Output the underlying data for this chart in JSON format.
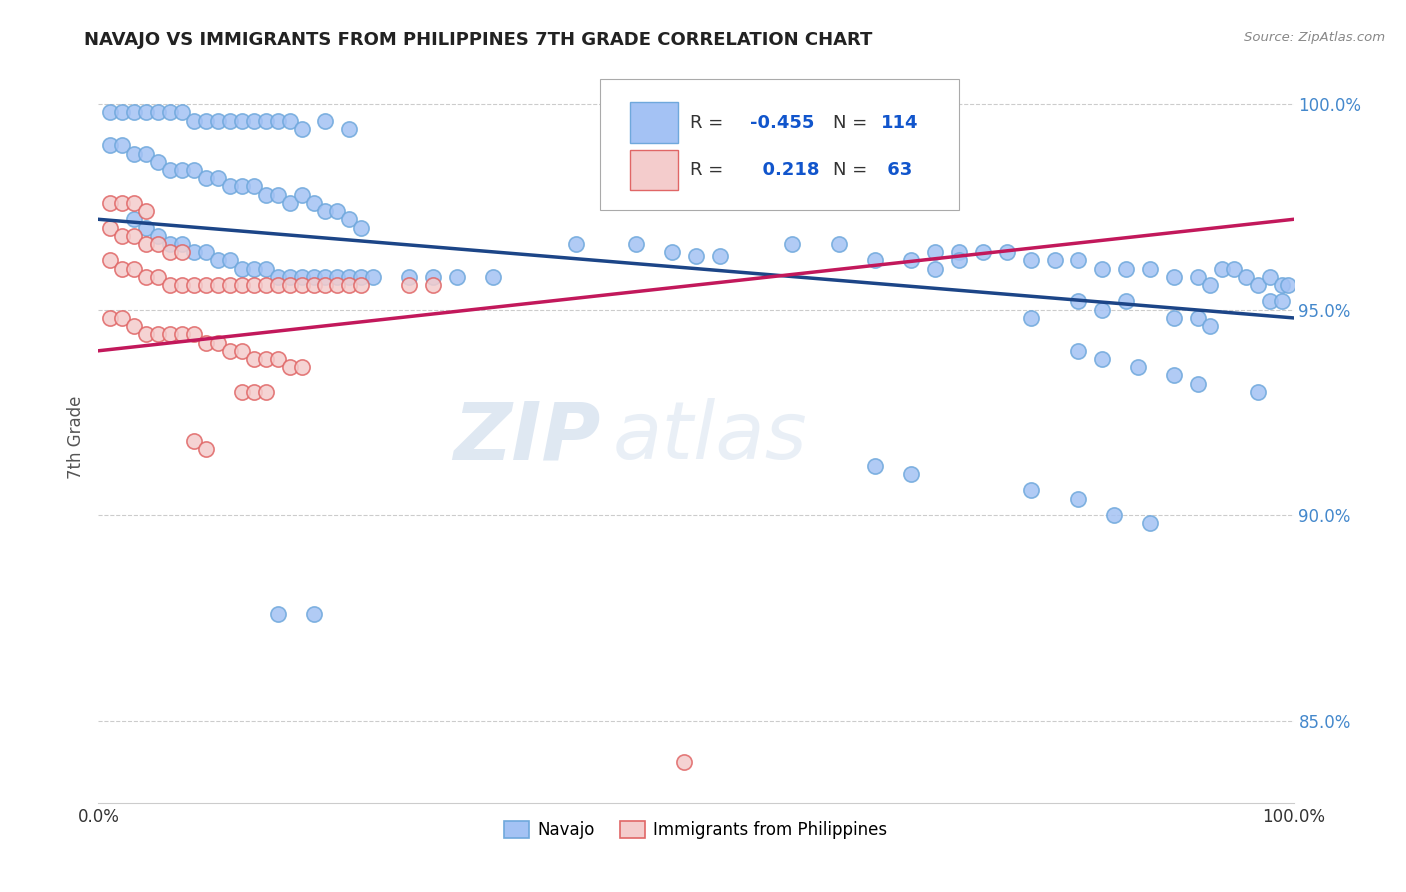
{
  "title": "NAVAJO VS IMMIGRANTS FROM PHILIPPINES 7TH GRADE CORRELATION CHART",
  "source": "Source: ZipAtlas.com",
  "ylabel": "7th Grade",
  "xlim": [
    0.0,
    1.0
  ],
  "ylim": [
    0.83,
    1.008
  ],
  "ytick_labels": [
    "85.0%",
    "90.0%",
    "95.0%",
    "100.0%"
  ],
  "ytick_values": [
    0.85,
    0.9,
    0.95,
    1.0
  ],
  "xtick_labels": [
    "0.0%",
    "",
    "",
    "",
    "",
    "",
    "",
    "",
    "",
    "",
    "100.0%"
  ],
  "xtick_values": [
    0.0,
    0.1,
    0.2,
    0.3,
    0.4,
    0.5,
    0.6,
    0.7,
    0.8,
    0.9,
    1.0
  ],
  "legend_bottom": [
    "Navajo",
    "Immigrants from Philippines"
  ],
  "blue_color": "#a4c2f4",
  "blue_edge_color": "#6fa8dc",
  "pink_color": "#f4cccc",
  "pink_edge_color": "#e06666",
  "blue_line_color": "#1c4587",
  "pink_line_color": "#c2185b",
  "watermark_text": "ZIPatlas",
  "background_color": "#ffffff",
  "grid_color": "#cccccc",
  "title_color": "#222222",
  "blue_line_x": [
    0.0,
    1.0
  ],
  "blue_line_y": [
    0.972,
    0.948
  ],
  "pink_line_x": [
    0.0,
    1.0
  ],
  "pink_line_y": [
    0.94,
    0.972
  ],
  "blue_scatter": [
    [
      0.01,
      0.998
    ],
    [
      0.02,
      0.998
    ],
    [
      0.03,
      0.998
    ],
    [
      0.04,
      0.998
    ],
    [
      0.05,
      0.998
    ],
    [
      0.06,
      0.998
    ],
    [
      0.07,
      0.998
    ],
    [
      0.08,
      0.996
    ],
    [
      0.09,
      0.996
    ],
    [
      0.1,
      0.996
    ],
    [
      0.11,
      0.996
    ],
    [
      0.12,
      0.996
    ],
    [
      0.13,
      0.996
    ],
    [
      0.14,
      0.996
    ],
    [
      0.15,
      0.996
    ],
    [
      0.16,
      0.996
    ],
    [
      0.17,
      0.994
    ],
    [
      0.19,
      0.996
    ],
    [
      0.21,
      0.994
    ],
    [
      0.01,
      0.99
    ],
    [
      0.02,
      0.99
    ],
    [
      0.03,
      0.988
    ],
    [
      0.04,
      0.988
    ],
    [
      0.05,
      0.986
    ],
    [
      0.06,
      0.984
    ],
    [
      0.07,
      0.984
    ],
    [
      0.08,
      0.984
    ],
    [
      0.09,
      0.982
    ],
    [
      0.1,
      0.982
    ],
    [
      0.11,
      0.98
    ],
    [
      0.12,
      0.98
    ],
    [
      0.13,
      0.98
    ],
    [
      0.14,
      0.978
    ],
    [
      0.15,
      0.978
    ],
    [
      0.16,
      0.976
    ],
    [
      0.17,
      0.978
    ],
    [
      0.18,
      0.976
    ],
    [
      0.19,
      0.974
    ],
    [
      0.2,
      0.974
    ],
    [
      0.21,
      0.972
    ],
    [
      0.22,
      0.97
    ],
    [
      0.03,
      0.972
    ],
    [
      0.04,
      0.97
    ],
    [
      0.05,
      0.968
    ],
    [
      0.06,
      0.966
    ],
    [
      0.07,
      0.966
    ],
    [
      0.08,
      0.964
    ],
    [
      0.09,
      0.964
    ],
    [
      0.1,
      0.962
    ],
    [
      0.11,
      0.962
    ],
    [
      0.12,
      0.96
    ],
    [
      0.13,
      0.96
    ],
    [
      0.14,
      0.96
    ],
    [
      0.15,
      0.958
    ],
    [
      0.16,
      0.958
    ],
    [
      0.17,
      0.958
    ],
    [
      0.18,
      0.958
    ],
    [
      0.19,
      0.958
    ],
    [
      0.2,
      0.958
    ],
    [
      0.21,
      0.958
    ],
    [
      0.22,
      0.958
    ],
    [
      0.23,
      0.958
    ],
    [
      0.26,
      0.958
    ],
    [
      0.28,
      0.958
    ],
    [
      0.3,
      0.958
    ],
    [
      0.33,
      0.958
    ],
    [
      0.4,
      0.966
    ],
    [
      0.45,
      0.966
    ],
    [
      0.48,
      0.964
    ],
    [
      0.5,
      0.963
    ],
    [
      0.52,
      0.963
    ],
    [
      0.58,
      0.966
    ],
    [
      0.62,
      0.966
    ],
    [
      0.65,
      0.962
    ],
    [
      0.68,
      0.962
    ],
    [
      0.7,
      0.964
    ],
    [
      0.72,
      0.964
    ],
    [
      0.74,
      0.964
    ],
    [
      0.76,
      0.964
    ],
    [
      0.78,
      0.962
    ],
    [
      0.8,
      0.962
    ],
    [
      0.82,
      0.962
    ],
    [
      0.84,
      0.96
    ],
    [
      0.86,
      0.96
    ],
    [
      0.88,
      0.96
    ],
    [
      0.9,
      0.958
    ],
    [
      0.92,
      0.958
    ],
    [
      0.93,
      0.956
    ],
    [
      0.94,
      0.96
    ],
    [
      0.95,
      0.96
    ],
    [
      0.96,
      0.958
    ],
    [
      0.97,
      0.956
    ],
    [
      0.98,
      0.958
    ],
    [
      0.99,
      0.956
    ],
    [
      0.995,
      0.956
    ],
    [
      0.98,
      0.952
    ],
    [
      0.99,
      0.952
    ],
    [
      0.82,
      0.952
    ],
    [
      0.84,
      0.95
    ],
    [
      0.86,
      0.952
    ],
    [
      0.9,
      0.948
    ],
    [
      0.92,
      0.948
    ],
    [
      0.93,
      0.946
    ],
    [
      0.78,
      0.948
    ],
    [
      0.7,
      0.96
    ],
    [
      0.72,
      0.962
    ],
    [
      0.82,
      0.94
    ],
    [
      0.84,
      0.938
    ],
    [
      0.87,
      0.936
    ],
    [
      0.9,
      0.934
    ],
    [
      0.92,
      0.932
    ],
    [
      0.97,
      0.93
    ],
    [
      0.65,
      0.912
    ],
    [
      0.68,
      0.91
    ],
    [
      0.78,
      0.906
    ],
    [
      0.82,
      0.904
    ],
    [
      0.85,
      0.9
    ],
    [
      0.88,
      0.898
    ],
    [
      0.15,
      0.876
    ],
    [
      0.18,
      0.876
    ]
  ],
  "pink_scatter": [
    [
      0.01,
      0.976
    ],
    [
      0.02,
      0.976
    ],
    [
      0.03,
      0.976
    ],
    [
      0.04,
      0.974
    ],
    [
      0.01,
      0.97
    ],
    [
      0.02,
      0.968
    ],
    [
      0.03,
      0.968
    ],
    [
      0.04,
      0.966
    ],
    [
      0.05,
      0.966
    ],
    [
      0.06,
      0.964
    ],
    [
      0.07,
      0.964
    ],
    [
      0.01,
      0.962
    ],
    [
      0.02,
      0.96
    ],
    [
      0.03,
      0.96
    ],
    [
      0.04,
      0.958
    ],
    [
      0.05,
      0.958
    ],
    [
      0.06,
      0.956
    ],
    [
      0.07,
      0.956
    ],
    [
      0.08,
      0.956
    ],
    [
      0.09,
      0.956
    ],
    [
      0.1,
      0.956
    ],
    [
      0.11,
      0.956
    ],
    [
      0.12,
      0.956
    ],
    [
      0.13,
      0.956
    ],
    [
      0.14,
      0.956
    ],
    [
      0.15,
      0.956
    ],
    [
      0.16,
      0.956
    ],
    [
      0.17,
      0.956
    ],
    [
      0.18,
      0.956
    ],
    [
      0.19,
      0.956
    ],
    [
      0.2,
      0.956
    ],
    [
      0.21,
      0.956
    ],
    [
      0.22,
      0.956
    ],
    [
      0.26,
      0.956
    ],
    [
      0.28,
      0.956
    ],
    [
      0.01,
      0.948
    ],
    [
      0.02,
      0.948
    ],
    [
      0.03,
      0.946
    ],
    [
      0.04,
      0.944
    ],
    [
      0.05,
      0.944
    ],
    [
      0.06,
      0.944
    ],
    [
      0.07,
      0.944
    ],
    [
      0.08,
      0.944
    ],
    [
      0.09,
      0.942
    ],
    [
      0.1,
      0.942
    ],
    [
      0.11,
      0.94
    ],
    [
      0.12,
      0.94
    ],
    [
      0.13,
      0.938
    ],
    [
      0.14,
      0.938
    ],
    [
      0.15,
      0.938
    ],
    [
      0.16,
      0.936
    ],
    [
      0.17,
      0.936
    ],
    [
      0.12,
      0.93
    ],
    [
      0.13,
      0.93
    ],
    [
      0.14,
      0.93
    ],
    [
      0.08,
      0.918
    ],
    [
      0.09,
      0.916
    ],
    [
      0.49,
      0.84
    ]
  ]
}
